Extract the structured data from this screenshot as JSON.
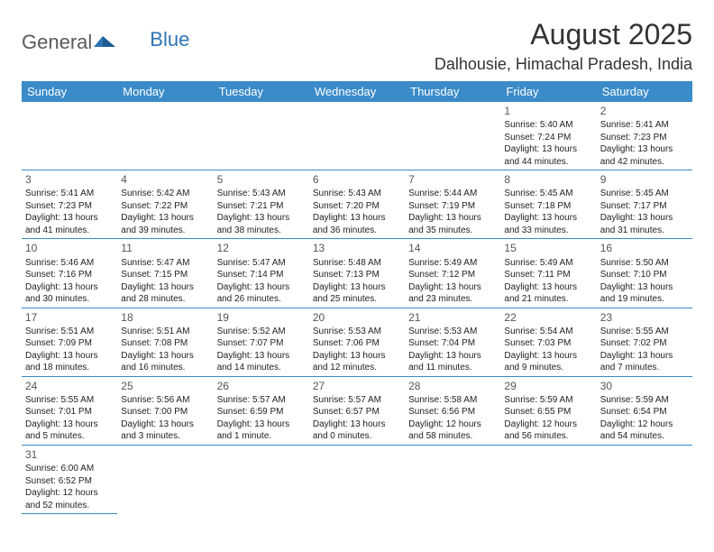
{
  "logo": {
    "text1": "General",
    "text2": "Blue"
  },
  "title": "August 2025",
  "location": "Dalhousie, Himachal Pradesh, India",
  "colors": {
    "header_bg": "#3b8bc9",
    "header_text": "#ffffff",
    "border": "#3b8bc9",
    "text": "#222222",
    "daynum": "#555555",
    "logo_general": "#5a5a5a",
    "logo_blue": "#2d74b5"
  },
  "fonts": {
    "title_size": 32,
    "location_size": 18,
    "header_size": 13,
    "cell_size": 10,
    "daynum_size": 12
  },
  "daynames": [
    "Sunday",
    "Monday",
    "Tuesday",
    "Wednesday",
    "Thursday",
    "Friday",
    "Saturday"
  ],
  "weeks": [
    [
      null,
      null,
      null,
      null,
      null,
      {
        "d": "1",
        "sr": "Sunrise: 5:40 AM",
        "ss": "Sunset: 7:24 PM",
        "dl": "Daylight: 13 hours and 44 minutes."
      },
      {
        "d": "2",
        "sr": "Sunrise: 5:41 AM",
        "ss": "Sunset: 7:23 PM",
        "dl": "Daylight: 13 hours and 42 minutes."
      }
    ],
    [
      {
        "d": "3",
        "sr": "Sunrise: 5:41 AM",
        "ss": "Sunset: 7:23 PM",
        "dl": "Daylight: 13 hours and 41 minutes."
      },
      {
        "d": "4",
        "sr": "Sunrise: 5:42 AM",
        "ss": "Sunset: 7:22 PM",
        "dl": "Daylight: 13 hours and 39 minutes."
      },
      {
        "d": "5",
        "sr": "Sunrise: 5:43 AM",
        "ss": "Sunset: 7:21 PM",
        "dl": "Daylight: 13 hours and 38 minutes."
      },
      {
        "d": "6",
        "sr": "Sunrise: 5:43 AM",
        "ss": "Sunset: 7:20 PM",
        "dl": "Daylight: 13 hours and 36 minutes."
      },
      {
        "d": "7",
        "sr": "Sunrise: 5:44 AM",
        "ss": "Sunset: 7:19 PM",
        "dl": "Daylight: 13 hours and 35 minutes."
      },
      {
        "d": "8",
        "sr": "Sunrise: 5:45 AM",
        "ss": "Sunset: 7:18 PM",
        "dl": "Daylight: 13 hours and 33 minutes."
      },
      {
        "d": "9",
        "sr": "Sunrise: 5:45 AM",
        "ss": "Sunset: 7:17 PM",
        "dl": "Daylight: 13 hours and 31 minutes."
      }
    ],
    [
      {
        "d": "10",
        "sr": "Sunrise: 5:46 AM",
        "ss": "Sunset: 7:16 PM",
        "dl": "Daylight: 13 hours and 30 minutes."
      },
      {
        "d": "11",
        "sr": "Sunrise: 5:47 AM",
        "ss": "Sunset: 7:15 PM",
        "dl": "Daylight: 13 hours and 28 minutes."
      },
      {
        "d": "12",
        "sr": "Sunrise: 5:47 AM",
        "ss": "Sunset: 7:14 PM",
        "dl": "Daylight: 13 hours and 26 minutes."
      },
      {
        "d": "13",
        "sr": "Sunrise: 5:48 AM",
        "ss": "Sunset: 7:13 PM",
        "dl": "Daylight: 13 hours and 25 minutes."
      },
      {
        "d": "14",
        "sr": "Sunrise: 5:49 AM",
        "ss": "Sunset: 7:12 PM",
        "dl": "Daylight: 13 hours and 23 minutes."
      },
      {
        "d": "15",
        "sr": "Sunrise: 5:49 AM",
        "ss": "Sunset: 7:11 PM",
        "dl": "Daylight: 13 hours and 21 minutes."
      },
      {
        "d": "16",
        "sr": "Sunrise: 5:50 AM",
        "ss": "Sunset: 7:10 PM",
        "dl": "Daylight: 13 hours and 19 minutes."
      }
    ],
    [
      {
        "d": "17",
        "sr": "Sunrise: 5:51 AM",
        "ss": "Sunset: 7:09 PM",
        "dl": "Daylight: 13 hours and 18 minutes."
      },
      {
        "d": "18",
        "sr": "Sunrise: 5:51 AM",
        "ss": "Sunset: 7:08 PM",
        "dl": "Daylight: 13 hours and 16 minutes."
      },
      {
        "d": "19",
        "sr": "Sunrise: 5:52 AM",
        "ss": "Sunset: 7:07 PM",
        "dl": "Daylight: 13 hours and 14 minutes."
      },
      {
        "d": "20",
        "sr": "Sunrise: 5:53 AM",
        "ss": "Sunset: 7:06 PM",
        "dl": "Daylight: 13 hours and 12 minutes."
      },
      {
        "d": "21",
        "sr": "Sunrise: 5:53 AM",
        "ss": "Sunset: 7:04 PM",
        "dl": "Daylight: 13 hours and 11 minutes."
      },
      {
        "d": "22",
        "sr": "Sunrise: 5:54 AM",
        "ss": "Sunset: 7:03 PM",
        "dl": "Daylight: 13 hours and 9 minutes."
      },
      {
        "d": "23",
        "sr": "Sunrise: 5:55 AM",
        "ss": "Sunset: 7:02 PM",
        "dl": "Daylight: 13 hours and 7 minutes."
      }
    ],
    [
      {
        "d": "24",
        "sr": "Sunrise: 5:55 AM",
        "ss": "Sunset: 7:01 PM",
        "dl": "Daylight: 13 hours and 5 minutes."
      },
      {
        "d": "25",
        "sr": "Sunrise: 5:56 AM",
        "ss": "Sunset: 7:00 PM",
        "dl": "Daylight: 13 hours and 3 minutes."
      },
      {
        "d": "26",
        "sr": "Sunrise: 5:57 AM",
        "ss": "Sunset: 6:59 PM",
        "dl": "Daylight: 13 hours and 1 minute."
      },
      {
        "d": "27",
        "sr": "Sunrise: 5:57 AM",
        "ss": "Sunset: 6:57 PM",
        "dl": "Daylight: 13 hours and 0 minutes."
      },
      {
        "d": "28",
        "sr": "Sunrise: 5:58 AM",
        "ss": "Sunset: 6:56 PM",
        "dl": "Daylight: 12 hours and 58 minutes."
      },
      {
        "d": "29",
        "sr": "Sunrise: 5:59 AM",
        "ss": "Sunset: 6:55 PM",
        "dl": "Daylight: 12 hours and 56 minutes."
      },
      {
        "d": "30",
        "sr": "Sunrise: 5:59 AM",
        "ss": "Sunset: 6:54 PM",
        "dl": "Daylight: 12 hours and 54 minutes."
      }
    ],
    [
      {
        "d": "31",
        "sr": "Sunrise: 6:00 AM",
        "ss": "Sunset: 6:52 PM",
        "dl": "Daylight: 12 hours and 52 minutes."
      },
      null,
      null,
      null,
      null,
      null,
      null
    ]
  ]
}
